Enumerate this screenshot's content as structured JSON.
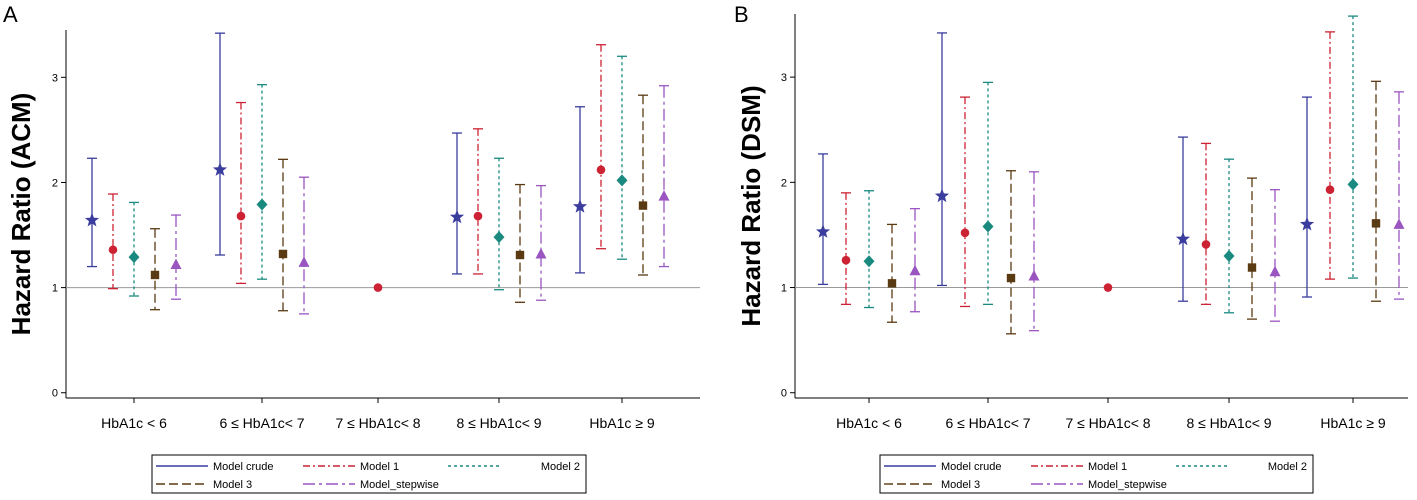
{
  "series_styles": [
    {
      "name": "Model crude",
      "color": "#3a3d9e",
      "dash": "",
      "marker": "star"
    },
    {
      "name": "Model 1",
      "color": "#cc2233",
      "dash": "7 3 2 3",
      "marker": "circle"
    },
    {
      "name": "Model 2",
      "color": "#1a8a80",
      "dash": "3 3",
      "marker": "diamond"
    },
    {
      "name": "Model 3",
      "color": "#5a3a12",
      "dash": "9 4",
      "marker": "square"
    },
    {
      "name": "Model_stepwise",
      "color": "#9a55c0",
      "dash": "12 4 3 4",
      "marker": "triangle"
    }
  ],
  "chart_data": [
    {
      "type": "scatter",
      "panel": "A",
      "title": "",
      "xlabel": "",
      "ylabel": "Hazard Ratio (ACM)",
      "ylim": [
        -0.05,
        3.45
      ],
      "yticks": [
        0,
        1,
        2,
        3
      ],
      "reference_line": 1,
      "categories": [
        "HbA1c < 6",
        "6 ≤ HbA1c< 7",
        "7 ≤ HbA1c< 8",
        "8 ≤ HbA1c< 9",
        "HbA1c ≥ 9"
      ],
      "reference_category_value": 1.0,
      "series": [
        {
          "name": "Model crude",
          "points": [
            {
              "hr": 1.64,
              "lo": 1.2,
              "hi": 2.23
            },
            {
              "hr": 2.12,
              "lo": 1.31,
              "hi": 3.42
            },
            null,
            {
              "hr": 1.67,
              "lo": 1.13,
              "hi": 2.47
            },
            {
              "hr": 1.77,
              "lo": 1.14,
              "hi": 2.72
            }
          ]
        },
        {
          "name": "Model 1",
          "points": [
            {
              "hr": 1.36,
              "lo": 0.99,
              "hi": 1.89
            },
            {
              "hr": 1.68,
              "lo": 1.04,
              "hi": 2.76
            },
            null,
            {
              "hr": 1.68,
              "lo": 1.13,
              "hi": 2.51
            },
            {
              "hr": 2.12,
              "lo": 1.37,
              "hi": 3.31
            }
          ]
        },
        {
          "name": "Model 2",
          "points": [
            {
              "hr": 1.29,
              "lo": 0.92,
              "hi": 1.81
            },
            {
              "hr": 1.79,
              "lo": 1.08,
              "hi": 2.93
            },
            null,
            {
              "hr": 1.48,
              "lo": 0.98,
              "hi": 2.23
            },
            {
              "hr": 2.02,
              "lo": 1.27,
              "hi": 3.2
            }
          ]
        },
        {
          "name": "Model 3",
          "points": [
            {
              "hr": 1.12,
              "lo": 0.79,
              "hi": 1.56
            },
            {
              "hr": 1.32,
              "lo": 0.78,
              "hi": 2.22
            },
            null,
            {
              "hr": 1.31,
              "lo": 0.86,
              "hi": 1.98
            },
            {
              "hr": 1.78,
              "lo": 1.12,
              "hi": 2.83
            }
          ]
        },
        {
          "name": "Model_stepwise",
          "points": [
            {
              "hr": 1.22,
              "lo": 0.89,
              "hi": 1.69
            },
            {
              "hr": 1.24,
              "lo": 0.75,
              "hi": 2.05
            },
            null,
            {
              "hr": 1.32,
              "lo": 0.88,
              "hi": 1.97
            },
            {
              "hr": 1.87,
              "lo": 1.2,
              "hi": 2.92
            }
          ]
        }
      ],
      "legend": [
        "Model crude",
        "Model 1",
        "Model 2",
        "Model 3",
        "Model_stepwise"
      ],
      "legend_position": "bottom"
    },
    {
      "type": "scatter",
      "panel": "B",
      "title": "",
      "xlabel": "",
      "ylabel": "Hazard Ratio (DSM)",
      "ylim": [
        -0.05,
        3.6
      ],
      "yticks": [
        0,
        1,
        2,
        3
      ],
      "reference_line": 1,
      "categories": [
        "HbA1c < 6",
        "6 ≤ HbA1c< 7",
        "7 ≤ HbA1c< 8",
        "8 ≤ HbA1c< 9",
        "HbA1c ≥ 9"
      ],
      "reference_category_value": 1.0,
      "series": [
        {
          "name": "Model crude",
          "points": [
            {
              "hr": 1.53,
              "lo": 1.03,
              "hi": 2.27
            },
            {
              "hr": 1.87,
              "lo": 1.02,
              "hi": 3.42
            },
            null,
            {
              "hr": 1.46,
              "lo": 0.87,
              "hi": 2.43
            },
            {
              "hr": 1.6,
              "lo": 0.91,
              "hi": 2.81
            }
          ]
        },
        {
          "name": "Model 1",
          "points": [
            {
              "hr": 1.26,
              "lo": 0.84,
              "hi": 1.9
            },
            {
              "hr": 1.52,
              "lo": 0.82,
              "hi": 2.81
            },
            null,
            {
              "hr": 1.41,
              "lo": 0.84,
              "hi": 2.37
            },
            {
              "hr": 1.93,
              "lo": 1.08,
              "hi": 3.43
            }
          ]
        },
        {
          "name": "Model 2",
          "points": [
            {
              "hr": 1.25,
              "lo": 0.81,
              "hi": 1.92
            },
            {
              "hr": 1.58,
              "lo": 0.84,
              "hi": 2.95
            },
            null,
            {
              "hr": 1.3,
              "lo": 0.76,
              "hi": 2.22
            },
            {
              "hr": 1.98,
              "lo": 1.09,
              "hi": 3.58
            }
          ]
        },
        {
          "name": "Model 3",
          "points": [
            {
              "hr": 1.04,
              "lo": 0.67,
              "hi": 1.6
            },
            {
              "hr": 1.09,
              "lo": 0.56,
              "hi": 2.11
            },
            null,
            {
              "hr": 1.19,
              "lo": 0.7,
              "hi": 2.04
            },
            {
              "hr": 1.61,
              "lo": 0.87,
              "hi": 2.96
            }
          ]
        },
        {
          "name": "Model_stepwise",
          "points": [
            {
              "hr": 1.16,
              "lo": 0.77,
              "hi": 1.75
            },
            {
              "hr": 1.11,
              "lo": 0.59,
              "hi": 2.1
            },
            null,
            {
              "hr": 1.15,
              "lo": 0.68,
              "hi": 1.93
            },
            {
              "hr": 1.6,
              "lo": 0.89,
              "hi": 2.86
            }
          ]
        }
      ],
      "legend": [
        "Model crude",
        "Model 1",
        "Model 2",
        "Model 3",
        "Model_stepwise"
      ],
      "legend_position": "bottom"
    }
  ]
}
